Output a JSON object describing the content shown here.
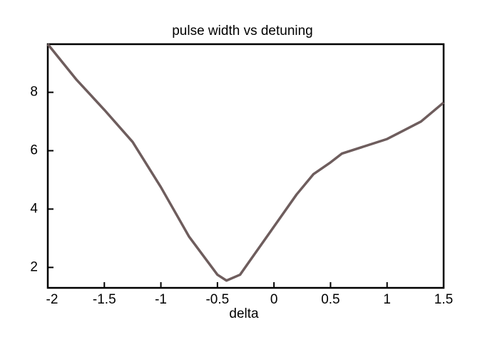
{
  "chart_data": {
    "type": "line",
    "title": "pulse width vs detuning",
    "x_label": "delta",
    "x": [
      -2,
      -1.75,
      -1.5,
      -1.25,
      -1,
      -0.75,
      -0.5,
      -0.42,
      -0.3,
      -0.2,
      0,
      0.2,
      0.35,
      0.5,
      0.6,
      1,
      1.1,
      1.3,
      1.5
    ],
    "series": [
      {
        "color": "#6e5d5d",
        "values": [
          9.65,
          8.45,
          7.4,
          6.3,
          4.75,
          3.05,
          1.75,
          1.55,
          1.75,
          2.3,
          3.4,
          4.5,
          5.2,
          5.6,
          5.9,
          6.4,
          6.6,
          7.0,
          7.65
        ]
      }
    ],
    "xlim": [
      -2,
      1.5
    ],
    "xticks": [
      -2,
      -1.5,
      -1,
      -0.5,
      0,
      0.5,
      1,
      1.5
    ],
    "ylim": [
      1.3,
      9.65
    ],
    "yticks": [
      2,
      4,
      6,
      8
    ]
  }
}
